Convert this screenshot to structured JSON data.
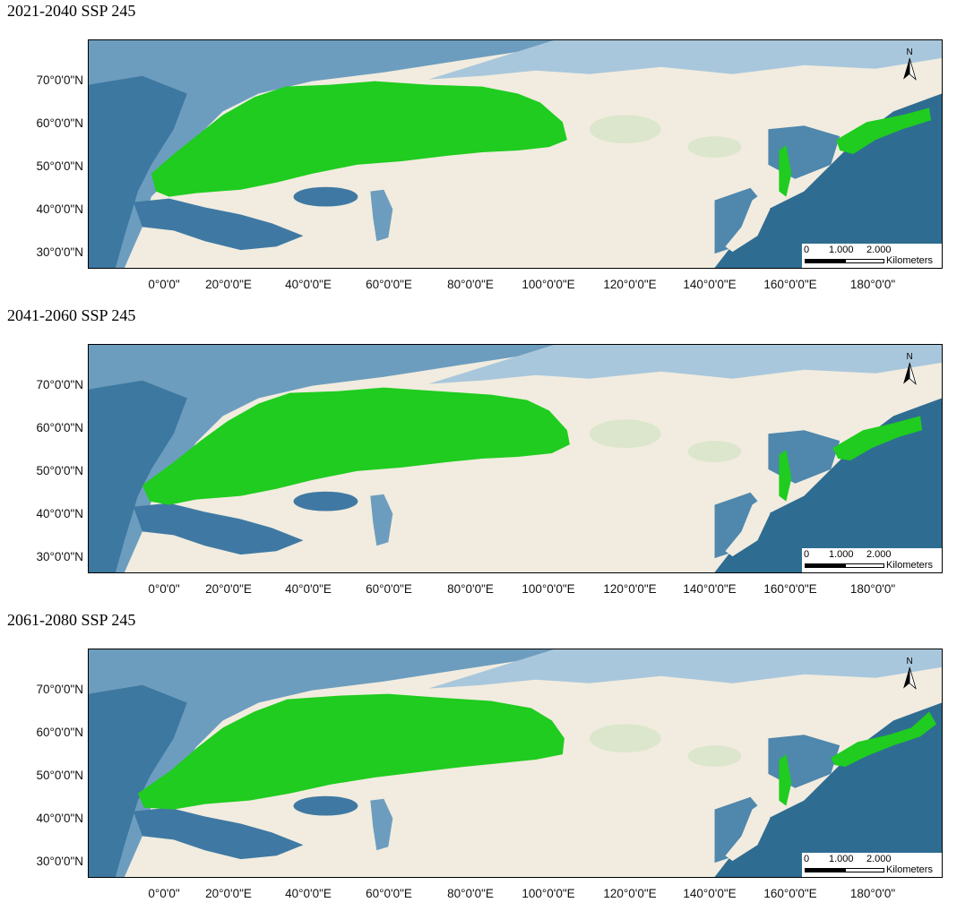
{
  "panels": [
    {
      "title": "2021-2040 SSP 245"
    },
    {
      "title": "2041-2060 SSP 245"
    },
    {
      "title": "2061-2080 SSP 245"
    }
  ],
  "lat_labels": [
    "70°0'0\"N",
    "60°0'0\"N",
    "50°0'0\"N",
    "40°0'0\"N",
    "30°0'0\"N"
  ],
  "lon_labels": [
    "0°0'0\"",
    "20°0'0\"E",
    "40°0'0\"E",
    "60°0'0\"E",
    "80°0'0\"E",
    "100°0'0\"E",
    "120°0'0\"E",
    "140°0'0\"E",
    "160°0'0\"E",
    "180°0'0\""
  ],
  "scalebar": {
    "tick_0": "0",
    "tick_1": "1.000",
    "tick_2": "2.000",
    "unit": "Kilometers"
  },
  "north_label": "N",
  "colors": {
    "suitable_habitat": "#1fcc1f",
    "ocean_deep": "#2f6c92",
    "ocean_shallow": "#a9c7dc",
    "land": "#f1ecdf"
  }
}
